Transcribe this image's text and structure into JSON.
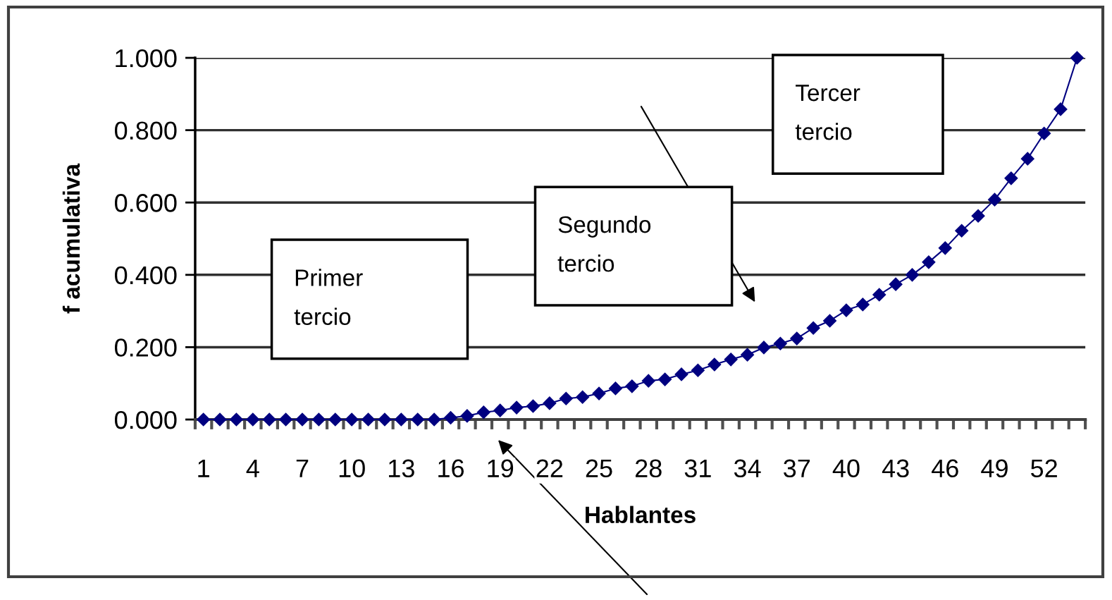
{
  "chart_data": {
    "type": "line",
    "xlabel": "Hablantes",
    "ylabel": "f acumulativa",
    "categories": [
      "1",
      null,
      null,
      "4",
      null,
      null,
      "7",
      null,
      null,
      "10",
      null,
      null,
      "13",
      null,
      null,
      "16",
      null,
      null,
      "19",
      null,
      null,
      "22",
      null,
      null,
      "25",
      null,
      null,
      "28",
      null,
      null,
      "31",
      null,
      null,
      "34",
      null,
      null,
      "37",
      null,
      null,
      "40",
      null,
      null,
      "43",
      null,
      null,
      "46",
      null,
      null,
      "49",
      null,
      null,
      "52",
      null,
      null
    ],
    "series": [
      {
        "color": "#000080",
        "values": [
          0,
          0,
          0,
          0,
          0,
          0,
          0,
          0,
          0,
          0,
          0,
          0,
          0,
          0,
          0,
          0.005,
          0.01,
          0.02,
          0.025,
          0.033,
          0.037,
          0.045,
          0.058,
          0.062,
          0.072,
          0.086,
          0.092,
          0.107,
          0.111,
          0.125,
          0.136,
          0.152,
          0.166,
          0.179,
          0.199,
          0.21,
          0.224,
          0.253,
          0.273,
          0.302,
          0.318,
          0.345,
          0.374,
          0.4,
          0.435,
          0.474,
          0.522,
          0.563,
          0.608,
          0.667,
          0.721,
          0.791,
          0.858,
          1.0
        ]
      }
    ],
    "ylim": [
      0,
      1
    ],
    "yticks": [
      {
        "value": 0,
        "label": "0.000"
      },
      {
        "value": 0.2,
        "label": "0.200"
      },
      {
        "value": 0.4,
        "label": "0.400"
      },
      {
        "value": 0.6,
        "label": "0.600"
      },
      {
        "value": 0.8,
        "label": "0.800"
      },
      {
        "value": 1,
        "label": "1.000"
      }
    ],
    "grid": "y",
    "marker": "diamond",
    "line_style": "solid",
    "annotations": [
      "Primer\ntercio",
      "Segundo\ntercio",
      "Tercer\ntercio"
    ]
  }
}
